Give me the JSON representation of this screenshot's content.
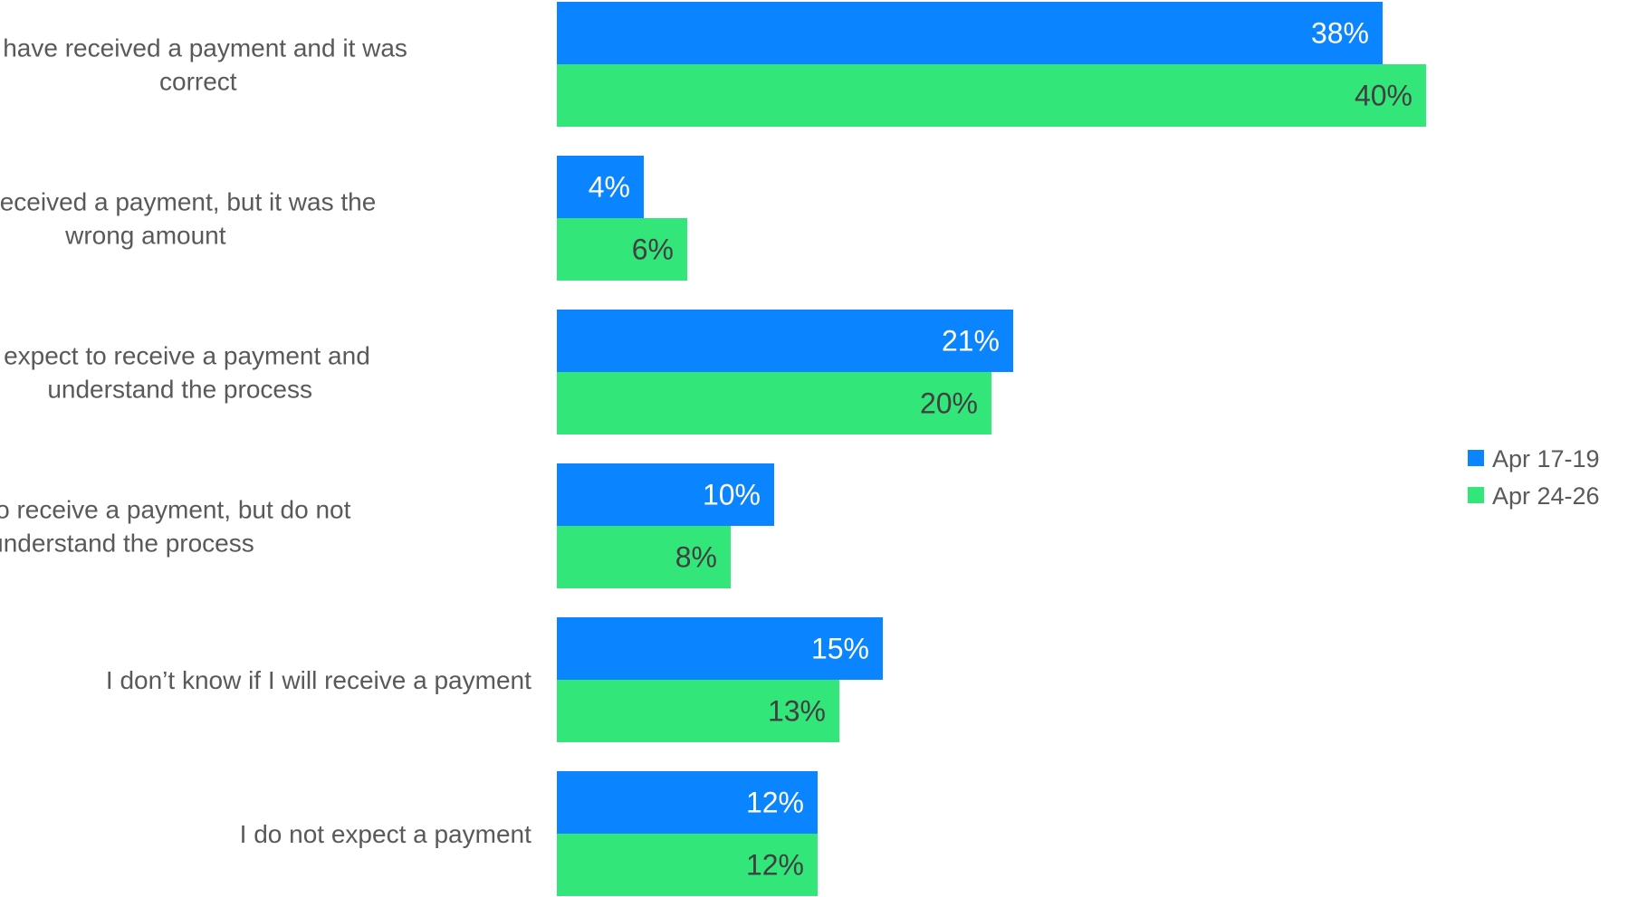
{
  "chart_data": {
    "type": "bar",
    "orientation": "horizontal",
    "categories": [
      [
        "I have received a payment and it was",
        "correct"
      ],
      [
        "I have received a payment, but it was the",
        "wrong amount"
      ],
      [
        "I expect to receive a payment and",
        "understand the process"
      ],
      [
        "I expect to receive a payment, but do not",
        "understand the process"
      ],
      [
        "I don’t know if I will receive a payment"
      ],
      [
        "I do not expect a payment"
      ]
    ],
    "series": [
      {
        "name": "Apr 17-19",
        "color": "#0A84FF",
        "label_color": "#FFFFFF",
        "values": [
          38,
          4,
          21,
          10,
          15,
          12
        ],
        "labels": [
          "38%",
          "4%",
          "21%",
          "10%",
          "15%",
          "12%"
        ]
      },
      {
        "name": "Apr 24-26",
        "color": "#33E67A",
        "label_color": "#404040",
        "values": [
          40,
          6,
          20,
          8,
          13,
          12
        ],
        "labels": [
          "40%",
          "6%",
          "20%",
          "8%",
          "13%",
          "12%"
        ]
      }
    ],
    "xlim": [
      0,
      40
    ],
    "grid": false,
    "legend_position": "right"
  }
}
